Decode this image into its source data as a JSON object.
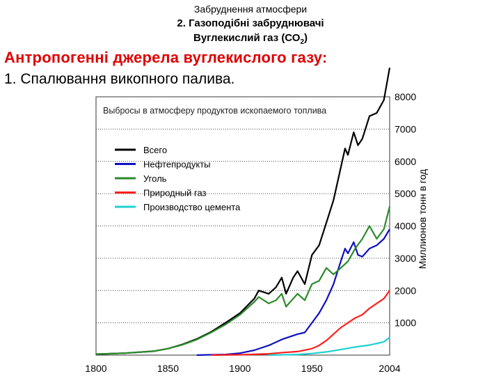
{
  "header": {
    "line1": "Забруднення атмосфери",
    "line2": "2. Газоподібні забруднювачі",
    "line3_main": "Вуглекислий газ (СО",
    "line3_sub": "2",
    "line3_end": ")"
  },
  "heading": "Антропогенні джерела вуглекислого газу:",
  "subheading": "1. Спалювання викопного палива.",
  "chart_data": {
    "type": "line",
    "title": "Выбросы в атмосферу продуктов ископаемого топлива",
    "ylabel": "Миллионов тонн в год",
    "xlim": [
      1800,
      2004
    ],
    "ylim": [
      0,
      8000
    ],
    "x_ticks": [
      1800,
      1850,
      1900,
      1950,
      2004
    ],
    "y_ticks": [
      1000,
      2000,
      3000,
      4000,
      5000,
      6000,
      7000,
      8000
    ],
    "grid": true,
    "legend_position": "top-left",
    "series": [
      {
        "name": "Всего",
        "color": "#000000",
        "points": [
          [
            1800,
            30
          ],
          [
            1820,
            60
          ],
          [
            1840,
            120
          ],
          [
            1850,
            200
          ],
          [
            1860,
            330
          ],
          [
            1870,
            500
          ],
          [
            1880,
            720
          ],
          [
            1890,
            1000
          ],
          [
            1900,
            1300
          ],
          [
            1910,
            1750
          ],
          [
            1913,
            2000
          ],
          [
            1920,
            1900
          ],
          [
            1925,
            2100
          ],
          [
            1929,
            2400
          ],
          [
            1932,
            1900
          ],
          [
            1937,
            2400
          ],
          [
            1940,
            2600
          ],
          [
            1945,
            2200
          ],
          [
            1950,
            3100
          ],
          [
            1955,
            3400
          ],
          [
            1960,
            4100
          ],
          [
            1965,
            4800
          ],
          [
            1970,
            5800
          ],
          [
            1973,
            6400
          ],
          [
            1975,
            6200
          ],
          [
            1979,
            6900
          ],
          [
            1982,
            6500
          ],
          [
            1985,
            6700
          ],
          [
            1990,
            7400
          ],
          [
            1995,
            7500
          ],
          [
            2000,
            7900
          ],
          [
            2004,
            8900
          ]
        ]
      },
      {
        "name": "Нефтепродукты",
        "color": "#1010c0",
        "points": [
          [
            1870,
            0
          ],
          [
            1880,
            10
          ],
          [
            1890,
            20
          ],
          [
            1900,
            60
          ],
          [
            1910,
            150
          ],
          [
            1920,
            300
          ],
          [
            1930,
            500
          ],
          [
            1940,
            650
          ],
          [
            1945,
            700
          ],
          [
            1950,
            1000
          ],
          [
            1955,
            1300
          ],
          [
            1960,
            1700
          ],
          [
            1965,
            2200
          ],
          [
            1970,
            2900
          ],
          [
            1973,
            3300
          ],
          [
            1975,
            3150
          ],
          [
            1979,
            3500
          ],
          [
            1982,
            3100
          ],
          [
            1985,
            3050
          ],
          [
            1990,
            3300
          ],
          [
            1995,
            3400
          ],
          [
            2000,
            3600
          ],
          [
            2004,
            3900
          ]
        ]
      },
      {
        "name": "Уголь",
        "color": "#2a8a2a",
        "points": [
          [
            1800,
            30
          ],
          [
            1820,
            60
          ],
          [
            1840,
            120
          ],
          [
            1850,
            200
          ],
          [
            1860,
            320
          ],
          [
            1870,
            480
          ],
          [
            1880,
            700
          ],
          [
            1890,
            950
          ],
          [
            1900,
            1250
          ],
          [
            1910,
            1650
          ],
          [
            1913,
            1800
          ],
          [
            1920,
            1600
          ],
          [
            1925,
            1700
          ],
          [
            1929,
            1900
          ],
          [
            1932,
            1500
          ],
          [
            1937,
            1750
          ],
          [
            1940,
            1900
          ],
          [
            1945,
            1700
          ],
          [
            1950,
            2200
          ],
          [
            1955,
            2300
          ],
          [
            1960,
            2700
          ],
          [
            1965,
            2500
          ],
          [
            1970,
            2700
          ],
          [
            1975,
            2900
          ],
          [
            1980,
            3300
          ],
          [
            1985,
            3600
          ],
          [
            1990,
            4000
          ],
          [
            1995,
            3600
          ],
          [
            2000,
            3900
          ],
          [
            2004,
            4600
          ]
        ]
      },
      {
        "name": "Природный газ",
        "color": "#ff2020",
        "points": [
          [
            1880,
            0
          ],
          [
            1900,
            10
          ],
          [
            1920,
            40
          ],
          [
            1930,
            80
          ],
          [
            1940,
            110
          ],
          [
            1950,
            200
          ],
          [
            1955,
            300
          ],
          [
            1960,
            450
          ],
          [
            1965,
            650
          ],
          [
            1970,
            850
          ],
          [
            1975,
            1000
          ],
          [
            1980,
            1150
          ],
          [
            1985,
            1250
          ],
          [
            1990,
            1450
          ],
          [
            1995,
            1600
          ],
          [
            2000,
            1750
          ],
          [
            2004,
            2000
          ]
        ]
      },
      {
        "name": "Производство цемента",
        "color": "#20d0d0",
        "points": [
          [
            1920,
            0
          ],
          [
            1930,
            10
          ],
          [
            1940,
            20
          ],
          [
            1950,
            50
          ],
          [
            1960,
            100
          ],
          [
            1970,
            170
          ],
          [
            1980,
            250
          ],
          [
            1990,
            310
          ],
          [
            2000,
            410
          ],
          [
            2004,
            550
          ]
        ]
      }
    ]
  }
}
